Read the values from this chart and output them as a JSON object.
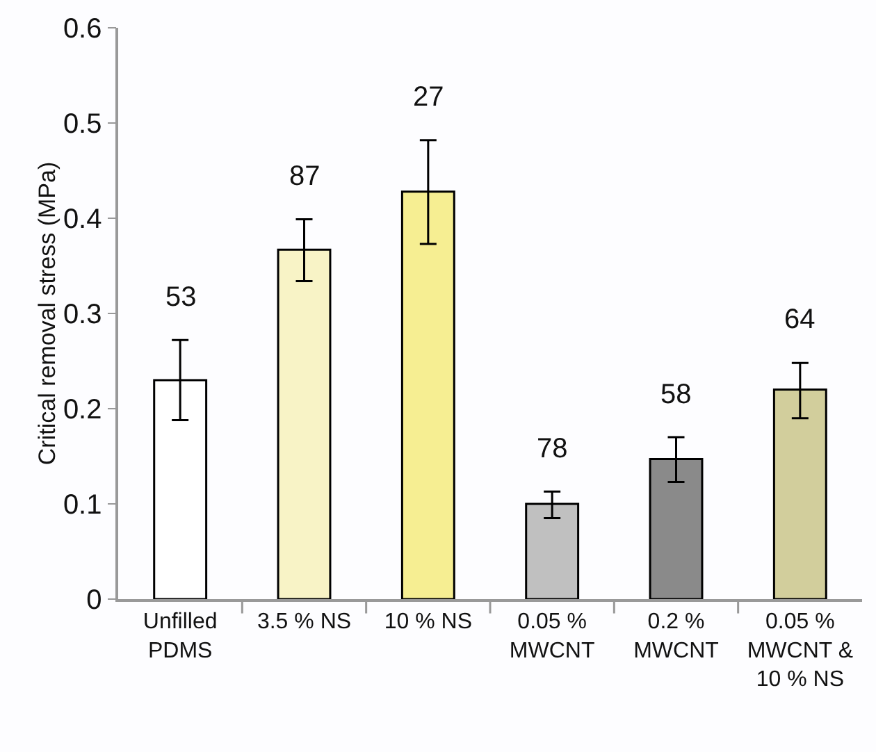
{
  "chart_data": {
    "type": "bar",
    "ylabel": "Critical removal stress (MPa)",
    "categories": [
      "Unfilled PDMS",
      "3.5 % NS",
      "10 % NS",
      "0.05 % MWCNT",
      "0.2 % MWCNT",
      "0.05 % MWCNT & 10 % NS"
    ],
    "values": [
      0.23,
      0.367,
      0.428,
      0.1,
      0.147,
      0.22
    ],
    "colors": [
      "#ffffff",
      "#f8f3c6",
      "#f6ee92",
      "#c0c0c0",
      "#8a8a8a",
      "#d2ce9c"
    ],
    "errors": [
      [
        0.188,
        0.272
      ],
      [
        0.334,
        0.399
      ],
      [
        0.373,
        0.482
      ],
      [
        0.085,
        0.113
      ],
      [
        0.123,
        0.17
      ],
      [
        0.19,
        0.248
      ]
    ],
    "ylim": [
      0,
      0.6
    ],
    "yticks": [
      0,
      0.1,
      0.2,
      0.3,
      0.4,
      0.5,
      0.6
    ],
    "annotations": [
      "53",
      "87",
      "27",
      "78",
      "58",
      "64"
    ],
    "grid": false
  }
}
